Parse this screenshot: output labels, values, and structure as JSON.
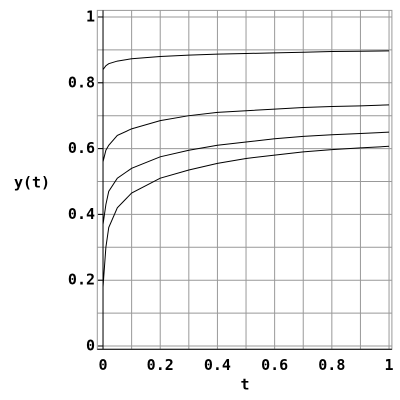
{
  "chart_data": {
    "type": "line",
    "xlabel": "t",
    "ylabel": "y(t)",
    "x": [
      0,
      0.01,
      0.02,
      0.05,
      0.1,
      0.2,
      0.3,
      0.4,
      0.5,
      0.6,
      0.7,
      0.8,
      0.9,
      1
    ],
    "series": [
      {
        "color": "#000000",
        "values": [
          0.84,
          0.852,
          0.858,
          0.866,
          0.873,
          0.88,
          0.884,
          0.887,
          0.889,
          0.891,
          0.893,
          0.895,
          0.896,
          0.897
        ]
      },
      {
        "color": "#000000",
        "values": [
          0.56,
          0.595,
          0.61,
          0.64,
          0.66,
          0.685,
          0.7,
          0.71,
          0.715,
          0.72,
          0.725,
          0.728,
          0.73,
          0.733
        ]
      },
      {
        "color": "#000000",
        "values": [
          0.37,
          0.43,
          0.47,
          0.51,
          0.54,
          0.575,
          0.595,
          0.61,
          0.62,
          0.63,
          0.637,
          0.642,
          0.646,
          0.65
        ]
      },
      {
        "color": "#000000",
        "values": [
          0.18,
          0.3,
          0.36,
          0.42,
          0.465,
          0.51,
          0.535,
          0.555,
          0.57,
          0.58,
          0.59,
          0.597,
          0.602,
          0.607
        ]
      }
    ],
    "xlim": [
      -0.02,
      1.01
    ],
    "ylim": [
      -0.01,
      1.02
    ],
    "xticks": [
      0,
      0.2,
      0.4,
      0.6,
      0.8,
      1
    ],
    "yticks": [
      0,
      0.2,
      0.4,
      0.6,
      0.8,
      1
    ],
    "grid": true
  }
}
